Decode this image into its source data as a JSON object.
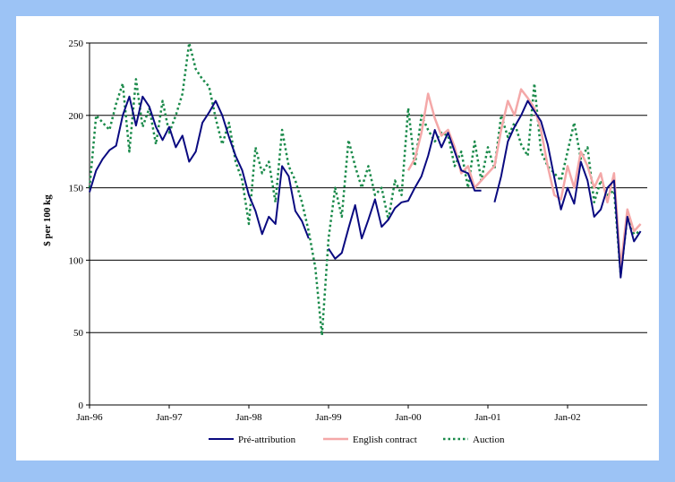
{
  "chart_data": {
    "type": "line",
    "title": "",
    "xlabel": "",
    "ylabel": "$ per 100 kg",
    "ylim": [
      0,
      250
    ],
    "yticks": [
      0,
      50,
      100,
      150,
      200,
      250
    ],
    "xlim": [
      "1996-01",
      "2002-12"
    ],
    "xtick_labels": [
      "Jan-96",
      "Jan-97",
      "Jan-98",
      "Jan-99",
      "Jan-00",
      "Jan-01",
      "Jan-02"
    ],
    "xtick_dates": [
      "1996-01",
      "1997-01",
      "1998-01",
      "1999-01",
      "2000-01",
      "2001-01",
      "2002-01"
    ],
    "grid": "horizontal",
    "legend": "bottom",
    "series": [
      {
        "name": "Pré-attribution",
        "color": "#0a0a80",
        "style": "solid",
        "points": [
          [
            "1996-01",
            147
          ],
          [
            "1996-02",
            162
          ],
          [
            "1996-03",
            170
          ],
          [
            "1996-04",
            176
          ],
          [
            "1996-05",
            179
          ],
          [
            "1996-06",
            200
          ],
          [
            "1996-07",
            213
          ],
          [
            "1996-08",
            193
          ],
          [
            "1996-09",
            213
          ],
          [
            "1996-10",
            206
          ],
          [
            "1996-11",
            192
          ],
          [
            "1996-12",
            183
          ],
          [
            "1997-01",
            192
          ],
          [
            "1997-02",
            178
          ],
          [
            "1997-03",
            186
          ],
          [
            "1997-04",
            168
          ],
          [
            "1997-05",
            175
          ],
          [
            "1997-06",
            195
          ],
          [
            "1997-07",
            202
          ],
          [
            "1997-08",
            210
          ],
          [
            "1997-09",
            200
          ],
          [
            "1997-10",
            185
          ],
          [
            "1997-11",
            172
          ],
          [
            "1997-12",
            162
          ],
          [
            "1998-01",
            145
          ],
          [
            "1998-02",
            134
          ],
          [
            "1998-03",
            118
          ],
          [
            "1998-04",
            130
          ],
          [
            "1998-05",
            125
          ],
          [
            "1998-06",
            165
          ],
          [
            "1998-07",
            158
          ],
          [
            "1998-08",
            134
          ],
          [
            "1998-09",
            127
          ],
          [
            "1998-10",
            115
          ],
          [
            "1998-11",
            null
          ],
          [
            "1998-12",
            null
          ],
          [
            "1999-01",
            108
          ],
          [
            "1999-02",
            101
          ],
          [
            "1999-03",
            105
          ],
          [
            "1999-04",
            122
          ],
          [
            "1999-05",
            138
          ],
          [
            "1999-06",
            115
          ],
          [
            "1999-07",
            128
          ],
          [
            "1999-08",
            142
          ],
          [
            "1999-09",
            123
          ],
          [
            "1999-10",
            128
          ],
          [
            "1999-11",
            136
          ],
          [
            "1999-12",
            140
          ],
          [
            "2000-01",
            141
          ],
          [
            "2000-02",
            150
          ],
          [
            "2000-03",
            158
          ],
          [
            "2000-04",
            172
          ],
          [
            "2000-05",
            190
          ],
          [
            "2000-06",
            178
          ],
          [
            "2000-07",
            188
          ],
          [
            "2000-08",
            175
          ],
          [
            "2000-09",
            162
          ],
          [
            "2000-10",
            160
          ],
          [
            "2000-11",
            148
          ],
          [
            "2000-12",
            148
          ],
          [
            "2001-01",
            null
          ],
          [
            "2001-02",
            140
          ],
          [
            "2001-03",
            158
          ],
          [
            "2001-04",
            182
          ],
          [
            "2001-05",
            192
          ],
          [
            "2001-06",
            200
          ],
          [
            "2001-07",
            210
          ],
          [
            "2001-08",
            203
          ],
          [
            "2001-09",
            196
          ],
          [
            "2001-10",
            180
          ],
          [
            "2001-11",
            157
          ],
          [
            "2001-12",
            135
          ],
          [
            "2002-01",
            150
          ],
          [
            "2002-02",
            139
          ],
          [
            "2002-03",
            168
          ],
          [
            "2002-04",
            155
          ],
          [
            "2002-05",
            130
          ],
          [
            "2002-06",
            135
          ],
          [
            "2002-07",
            150
          ],
          [
            "2002-08",
            155
          ],
          [
            "2002-09",
            88
          ],
          [
            "2002-10",
            130
          ],
          [
            "2002-11",
            113
          ],
          [
            "2002-12",
            120
          ]
        ]
      },
      {
        "name": "English contract",
        "color": "#f4a8a8",
        "style": "solid",
        "points": [
          [
            "2000-01",
            162
          ],
          [
            "2000-02",
            170
          ],
          [
            "2000-03",
            188
          ],
          [
            "2000-04",
            215
          ],
          [
            "2000-05",
            198
          ],
          [
            "2000-06",
            186
          ],
          [
            "2000-07",
            190
          ],
          [
            "2000-08",
            178
          ],
          [
            "2000-09",
            160
          ],
          [
            "2000-10",
            165
          ],
          [
            "2000-11",
            150
          ],
          [
            "2000-12",
            155
          ],
          [
            "2001-01",
            160
          ],
          [
            "2001-02",
            165
          ],
          [
            "2001-03",
            190
          ],
          [
            "2001-04",
            210
          ],
          [
            "2001-05",
            200
          ],
          [
            "2001-06",
            218
          ],
          [
            "2001-07",
            212
          ],
          [
            "2001-08",
            205
          ],
          [
            "2001-09",
            190
          ],
          [
            "2001-10",
            165
          ],
          [
            "2001-11",
            145
          ],
          [
            "2001-12",
            142
          ],
          [
            "2002-01",
            165
          ],
          [
            "2002-02",
            150
          ],
          [
            "2002-03",
            175
          ],
          [
            "2002-04",
            165
          ],
          [
            "2002-05",
            150
          ],
          [
            "2002-06",
            160
          ],
          [
            "2002-07",
            140
          ],
          [
            "2002-08",
            160
          ],
          [
            "2002-09",
            95
          ],
          [
            "2002-10",
            135
          ],
          [
            "2002-11",
            120
          ],
          [
            "2002-12",
            125
          ]
        ]
      },
      {
        "name": "Auction",
        "color": "#1a8a4a",
        "style": "dotted",
        "points": [
          [
            "1996-01",
            150
          ],
          [
            "1996-02",
            200
          ],
          [
            "1996-03",
            195
          ],
          [
            "1996-04",
            190
          ],
          [
            "1996-05",
            208
          ],
          [
            "1996-06",
            222
          ],
          [
            "1996-07",
            175
          ],
          [
            "1996-08",
            225
          ],
          [
            "1996-09",
            192
          ],
          [
            "1996-10",
            205
          ],
          [
            "1996-11",
            180
          ],
          [
            "1996-12",
            210
          ],
          [
            "1997-01",
            188
          ],
          [
            "1997-02",
            200
          ],
          [
            "1997-03",
            215
          ],
          [
            "1997-04",
            250
          ],
          [
            "1997-05",
            232
          ],
          [
            "1997-06",
            225
          ],
          [
            "1997-07",
            220
          ],
          [
            "1997-08",
            198
          ],
          [
            "1997-09",
            180
          ],
          [
            "1997-10",
            195
          ],
          [
            "1997-11",
            168
          ],
          [
            "1997-12",
            155
          ],
          [
            "1998-01",
            125
          ],
          [
            "1998-02",
            178
          ],
          [
            "1998-03",
            160
          ],
          [
            "1998-04",
            168
          ],
          [
            "1998-05",
            140
          ],
          [
            "1998-06",
            190
          ],
          [
            "1998-07",
            165
          ],
          [
            "1998-08",
            155
          ],
          [
            "1998-09",
            140
          ],
          [
            "1998-10",
            120
          ],
          [
            "1998-11",
            95
          ],
          [
            "1998-12",
            48
          ],
          [
            "1999-01",
            115
          ],
          [
            "1999-02",
            150
          ],
          [
            "1999-03",
            130
          ],
          [
            "1999-04",
            183
          ],
          [
            "1999-05",
            165
          ],
          [
            "1999-06",
            150
          ],
          [
            "1999-07",
            165
          ],
          [
            "1999-08",
            145
          ],
          [
            "1999-09",
            150
          ],
          [
            "1999-10",
            128
          ],
          [
            "1999-11",
            155
          ],
          [
            "1999-12",
            145
          ],
          [
            "2000-01",
            205
          ],
          [
            "2000-02",
            165
          ],
          [
            "2000-03",
            200
          ],
          [
            "2000-04",
            190
          ],
          [
            "2000-05",
            182
          ],
          [
            "2000-06",
            188
          ],
          [
            "2000-07",
            186
          ],
          [
            "2000-08",
            165
          ],
          [
            "2000-09",
            175
          ],
          [
            "2000-10",
            150
          ],
          [
            "2000-11",
            182
          ],
          [
            "2000-12",
            155
          ],
          [
            "2001-01",
            178
          ],
          [
            "2001-02",
            163
          ],
          [
            "2001-03",
            200
          ],
          [
            "2001-04",
            185
          ],
          [
            "2001-05",
            195
          ],
          [
            "2001-06",
            180
          ],
          [
            "2001-07",
            172
          ],
          [
            "2001-08",
            222
          ],
          [
            "2001-09",
            175
          ],
          [
            "2001-10",
            165
          ],
          [
            "2001-11",
            160
          ],
          [
            "2001-12",
            155
          ],
          [
            "2002-01",
            175
          ],
          [
            "2002-02",
            195
          ],
          [
            "2002-03",
            170
          ],
          [
            "2002-04",
            178
          ],
          [
            "2002-05",
            140
          ],
          [
            "2002-06",
            155
          ],
          [
            "2002-07",
            145
          ],
          [
            "2002-08",
            148
          ],
          [
            "2002-09",
            90
          ],
          [
            "2002-10",
            130
          ],
          [
            "2002-11",
            118
          ],
          [
            "2002-12",
            120
          ]
        ]
      }
    ]
  }
}
